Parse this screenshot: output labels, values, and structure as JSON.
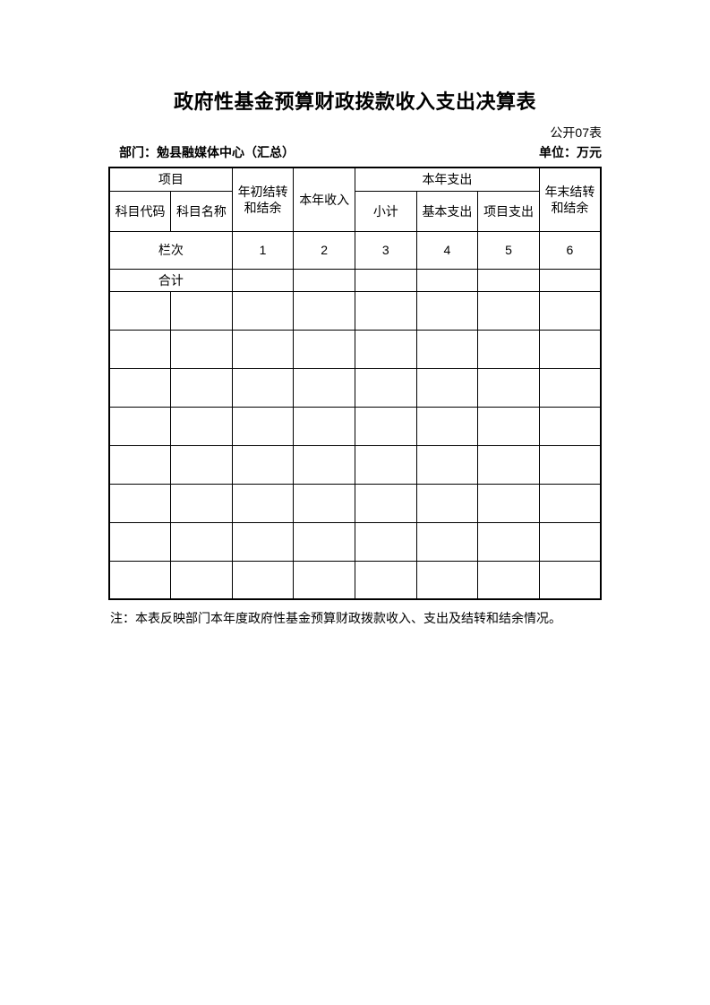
{
  "page": {
    "title": "政府性基金预算财政拨款收入支出决算表",
    "table_label": "公开07表",
    "department": "部门：勉县融媒体中心（汇总）",
    "unit": "单位：万元",
    "note": "注：本表反映部门本年度政府性基金预算财政拨款收入、支出及结转和结余情况。"
  },
  "table": {
    "header": {
      "project": "项目",
      "subject_code": "科目代码",
      "subject_name": "科目名称",
      "begin_balance": "年初结转\n和结余",
      "year_income": "本年收入",
      "year_expenditure": "本年支出",
      "subtotal": "小计",
      "basic_expenditure": "基本支出",
      "project_expenditure": "项目支出",
      "end_balance": "年末结转\n和结余"
    },
    "column_index_label": "栏次",
    "column_numbers": [
      "1",
      "2",
      "3",
      "4",
      "5",
      "6"
    ],
    "total_label": "合计",
    "total_values": [
      "",
      "",
      "",
      "",
      "",
      ""
    ],
    "empty_row_count": 8,
    "column_count": 8
  }
}
